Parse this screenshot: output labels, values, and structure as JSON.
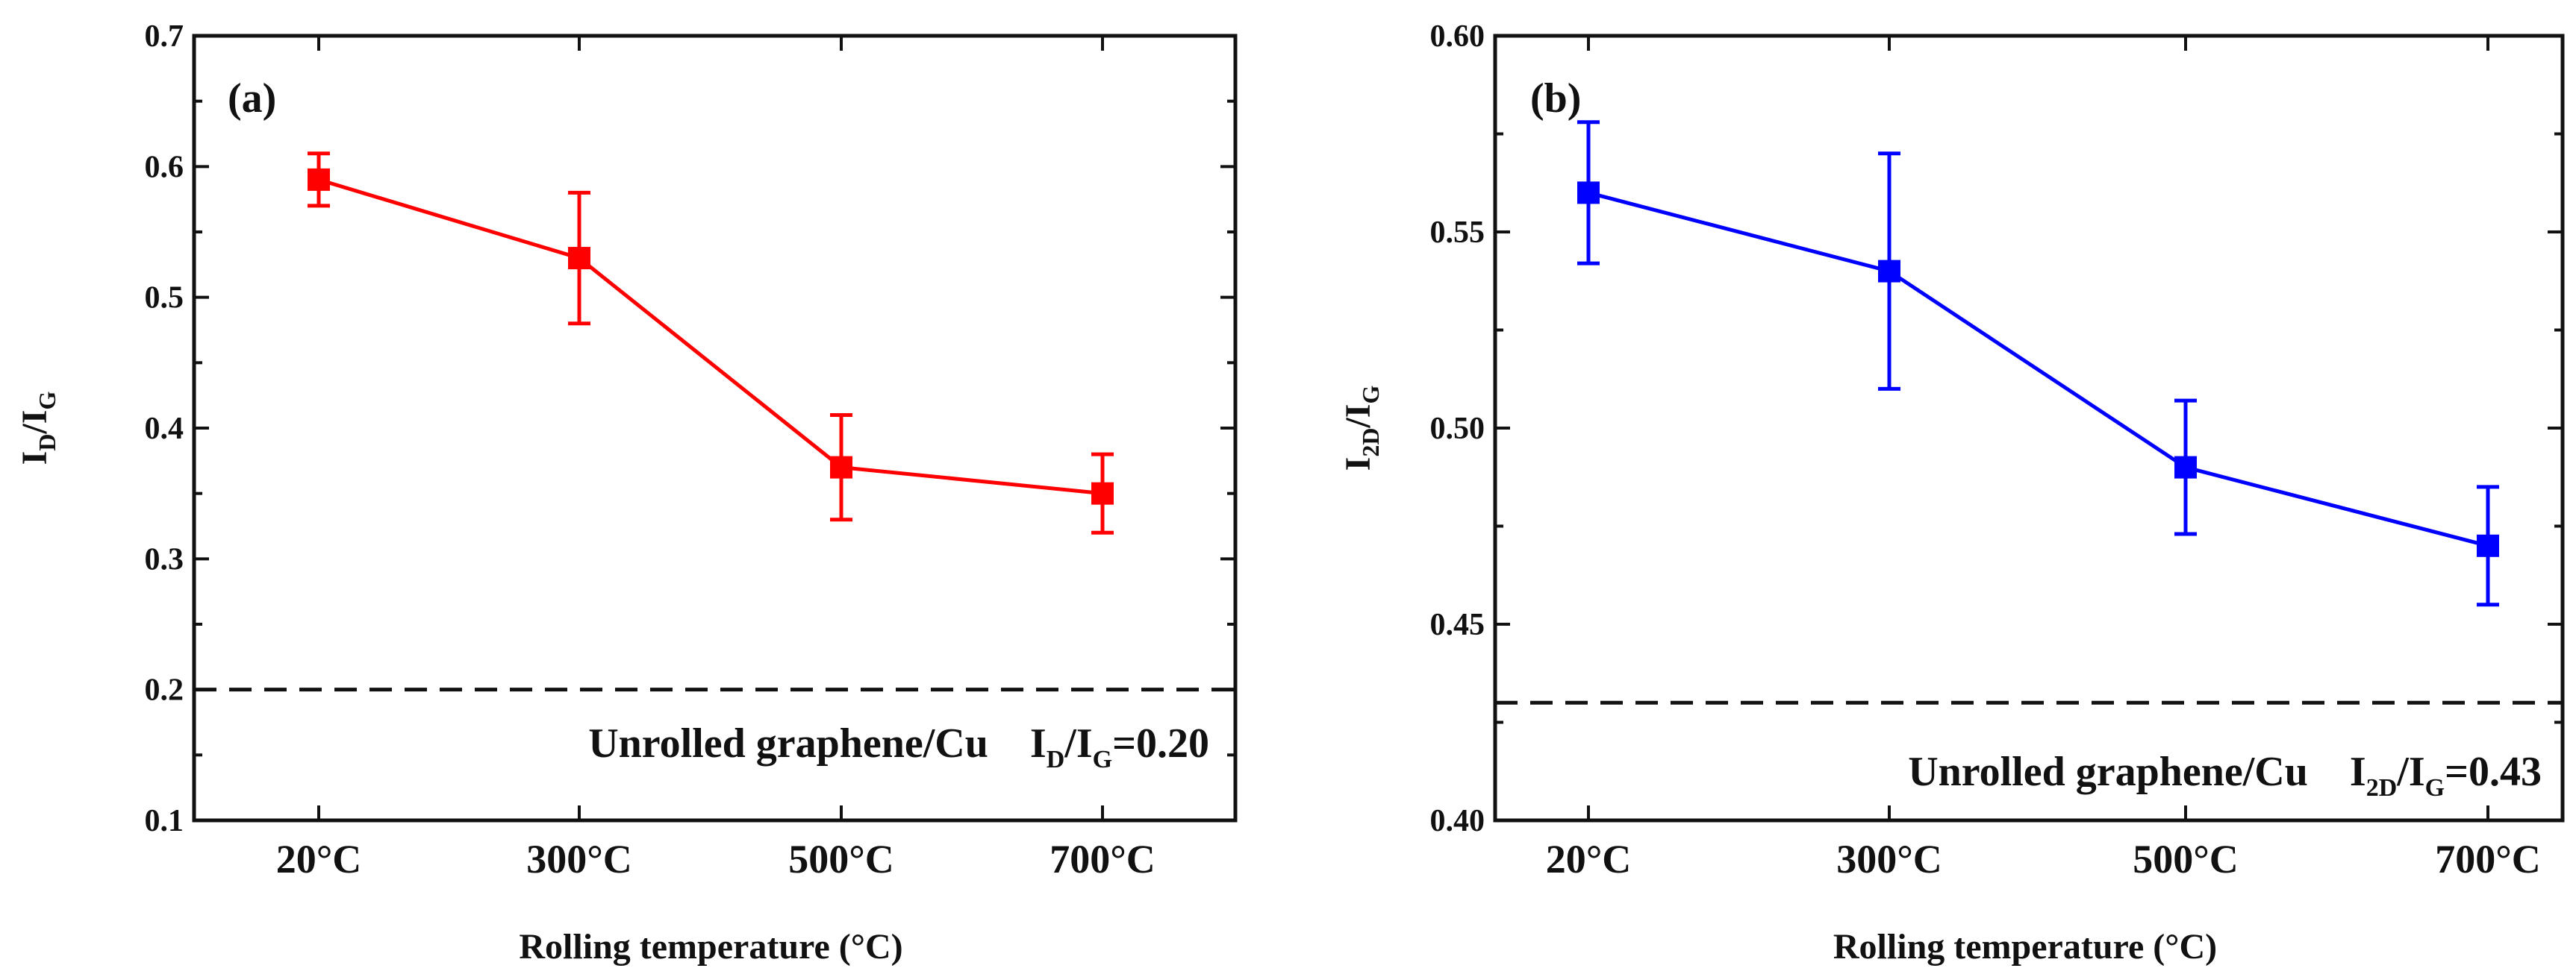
{
  "chart_data": [
    {
      "type": "line",
      "panel_label": "(a)",
      "categories": [
        "20°C",
        "300°C",
        "500°C",
        "700°C"
      ],
      "series": [
        {
          "name": "ID/IG",
          "color": "#ff0000",
          "values": [
            0.59,
            0.53,
            0.37,
            0.35
          ],
          "errors": [
            0.02,
            0.05,
            0.04,
            0.03
          ]
        }
      ],
      "xlabel": "Rolling temperature (°C)",
      "ylabel": {
        "main": "I",
        "sub1": "D",
        "slash": "/I",
        "sub2": "G"
      },
      "ylim": [
        0.1,
        0.7
      ],
      "yticks": [
        0.1,
        0.2,
        0.3,
        0.4,
        0.5,
        0.6,
        0.7
      ],
      "ytick_labels": [
        "0.1",
        "0.2",
        "0.3",
        "0.4",
        "0.5",
        "0.6",
        "0.7"
      ],
      "reference_line": {
        "value": 0.2,
        "style": "dashed"
      },
      "annotation": {
        "text": "Unrolled graphene/Cu",
        "ratio_main": "I",
        "ratio_sub1": "D",
        "ratio_slash": "/I",
        "ratio_sub2": "G",
        "ratio_value": "=0.20"
      }
    },
    {
      "type": "line",
      "panel_label": "(b)",
      "categories": [
        "20°C",
        "300°C",
        "500°C",
        "700°C"
      ],
      "series": [
        {
          "name": "I2D/IG",
          "color": "#0000ff",
          "values": [
            0.56,
            0.54,
            0.49,
            0.47
          ],
          "errors": [
            0.018,
            0.03,
            0.017,
            0.015
          ]
        }
      ],
      "xlabel": "Rolling temperature (°C)",
      "ylabel": {
        "main": "I",
        "sub1": "2D",
        "slash": "/I",
        "sub2": "G"
      },
      "ylim": [
        0.4,
        0.6
      ],
      "yticks": [
        0.4,
        0.45,
        0.5,
        0.55,
        0.6
      ],
      "ytick_labels": [
        "0.40",
        "0.45",
        "0.50",
        "0.55",
        "0.60"
      ],
      "reference_line": {
        "value": 0.43,
        "style": "dashed"
      },
      "annotation": {
        "text": "Unrolled graphene/Cu",
        "ratio_main": "I",
        "ratio_sub1": "2D",
        "ratio_slash": "/I",
        "ratio_sub2": "G",
        "ratio_value": "=0.43"
      }
    }
  ]
}
